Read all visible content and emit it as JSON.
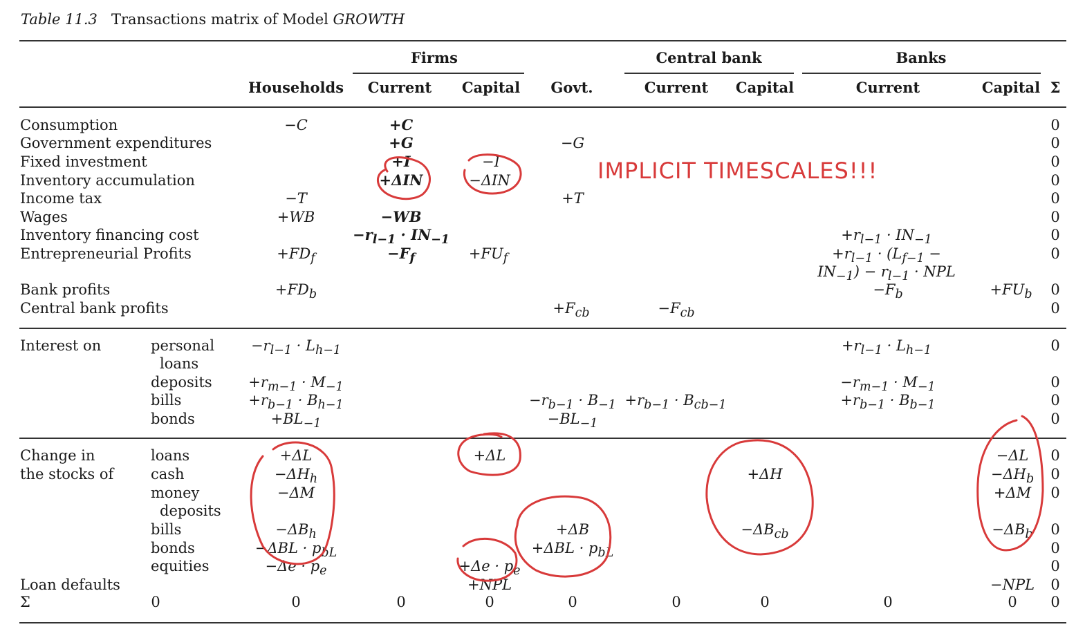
{
  "title": {
    "label": "Table 11.3",
    "text": "Transactions matrix of Model ",
    "model": "GROWTH"
  },
  "groups": {
    "firms": "Firms",
    "central_bank": "Central bank",
    "banks": "Banks"
  },
  "columns": {
    "households": "Households",
    "firms_current": "Current",
    "firms_capital": "Capital",
    "govt": "Govt.",
    "cb_current": "Current",
    "cb_capital": "Capital",
    "banks_current": "Current",
    "banks_capital": "Capital",
    "sigma": "Σ"
  },
  "rows": {
    "consumption": "Consumption",
    "gov_exp": "Government expenditures",
    "fixed_inv": "Fixed investment",
    "inv_accum": "Inventory accumulation",
    "income_tax": "Income tax",
    "wages": "Wages",
    "inv_fin_cost": "Inventory financing cost",
    "entre_profits": "Entrepreneurial Profits",
    "bank_profits": "Bank profits",
    "cb_profits": "Central bank profits",
    "interest_on": "Interest on",
    "personal": "personal",
    "loans_cont": "loans",
    "deposits": "deposits",
    "bills": "bills",
    "bonds": "bonds",
    "change_in": "Change in",
    "the_stocks_of": "the stocks of",
    "loans": "loans",
    "cash": "cash",
    "money": "money",
    "deposits_cont": "deposits",
    "bills2": "bills",
    "bonds2": "bonds",
    "equities": "equities",
    "loan_defaults": "Loan defaults",
    "sigma": "Σ"
  },
  "cells": {
    "c_h": "−C",
    "c_fc": "+C",
    "g_fc": "+G",
    "g_gov": "−G",
    "i_fc": "+I",
    "i_fk": "−I",
    "in_fc": "+ΔIN",
    "in_fk": "−ΔIN",
    "t_h": "−T",
    "t_gov": "+T",
    "wb_h": "+WB",
    "wb_fc": "−WB",
    "ifc_fc": "−r",
    "ifc_fc_sub": "l−1",
    "ifc_fc_tail": " · IN",
    "ifc_fc_tsub": "−1",
    "ifc_bc": "+r",
    "ifc_bc_sub": "l−1",
    "ifc_bc_tail": " · IN",
    "ifc_bc_tsub": "−1",
    "ep_h": "+FD",
    "ep_h_sub": "f",
    "ep_fc": "−F",
    "ep_fc_sub": "f",
    "ep_fk": "+FU",
    "ep_fk_sub": "f",
    "ep_bc1": "+r",
    "ep_bc1_sub": "l−1",
    "ep_bc1_tail": " · (L",
    "ep_bc1_tsub": "f−1",
    "ep_bc1_end": " −",
    "ep_bc2": "IN",
    "ep_bc2_sub": "−1",
    "ep_bc2_tail": ") − r",
    "ep_bc2_tsub": "l−1",
    "ep_bc2_end": " · NPL",
    "bp_h": "+FD",
    "bp_h_sub": "b",
    "bp_bc": "−F",
    "bp_bc_sub": "b",
    "bp_bk": "+FU",
    "bp_bk_sub": "b",
    "cbp_gov": "+F",
    "cbp_gov_sub": "cb",
    "cbp_cbc": "−F",
    "cbp_cbc_sub": "cb",
    "pl_h": "−r",
    "pl_h_sub": "l−1",
    "pl_h_tail": " · L",
    "pl_h_tsub": "h−1",
    "pl_bc": "+r",
    "pl_bc_sub": "l−1",
    "pl_bc_tail": " · L",
    "pl_bc_tsub": "h−1",
    "dep_h": "+r",
    "dep_h_sub": "m−1",
    "dep_h_tail": " · M",
    "dep_h_tsub": "−1",
    "dep_bc": "−r",
    "dep_bc_sub": "m−1",
    "dep_bc_tail": " · M",
    "dep_bc_tsub": "−1",
    "bil_h": "+r",
    "bil_h_sub": "b−1",
    "bil_h_tail": " · B",
    "bil_h_tsub": "h−1",
    "bil_gov": "−r",
    "bil_gov_sub": "b−1",
    "bil_gov_tail": " · B",
    "bil_gov_tsub": "−1",
    "bil_cbc": "+r",
    "bil_cbc_sub": "b−1",
    "bil_cbc_tail": " · B",
    "bil_cbc_tsub": "cb−1",
    "bil_bc": "+r",
    "bil_bc_sub": "b−1",
    "bil_bc_tail": " · B",
    "bil_bc_tsub": "b−1",
    "bon_h": "+BL",
    "bon_h_sub": "−1",
    "bon_gov": "−BL",
    "bon_gov_sub": "−1",
    "dl_h": "+ΔL",
    "dl_fk": "+ΔL",
    "dl_bk": "−ΔL",
    "dh_h": "−ΔH",
    "dh_h_sub": "h",
    "dh_cbk": "+ΔH",
    "dh_bk": "−ΔH",
    "dh_bk_sub": "b",
    "dm_h": "−ΔM",
    "dm_bk": "+ΔM",
    "db_h": "−ΔB",
    "db_h_sub": "h",
    "db_gov": "+ΔB",
    "db_cbk": "−ΔB",
    "db_cbk_sub": "cb",
    "db_bk": "−ΔB",
    "db_bk_sub": "b",
    "dbl_h": "−ΔBL · p",
    "dbl_h_sub": "bL",
    "dbl_gov": "+ΔBL · p",
    "dbl_gov_sub": "bL",
    "de_h": "−Δe · p",
    "de_h_sub": "e",
    "de_fk": "+Δe · p",
    "de_fk_sub": "e",
    "npl_fk": "+NPL",
    "npl_bk": "−NPL",
    "zero": "0"
  },
  "annotation": {
    "text": "IMPLICIT TIMESCALES!!!",
    "color": "#d83a3a"
  }
}
